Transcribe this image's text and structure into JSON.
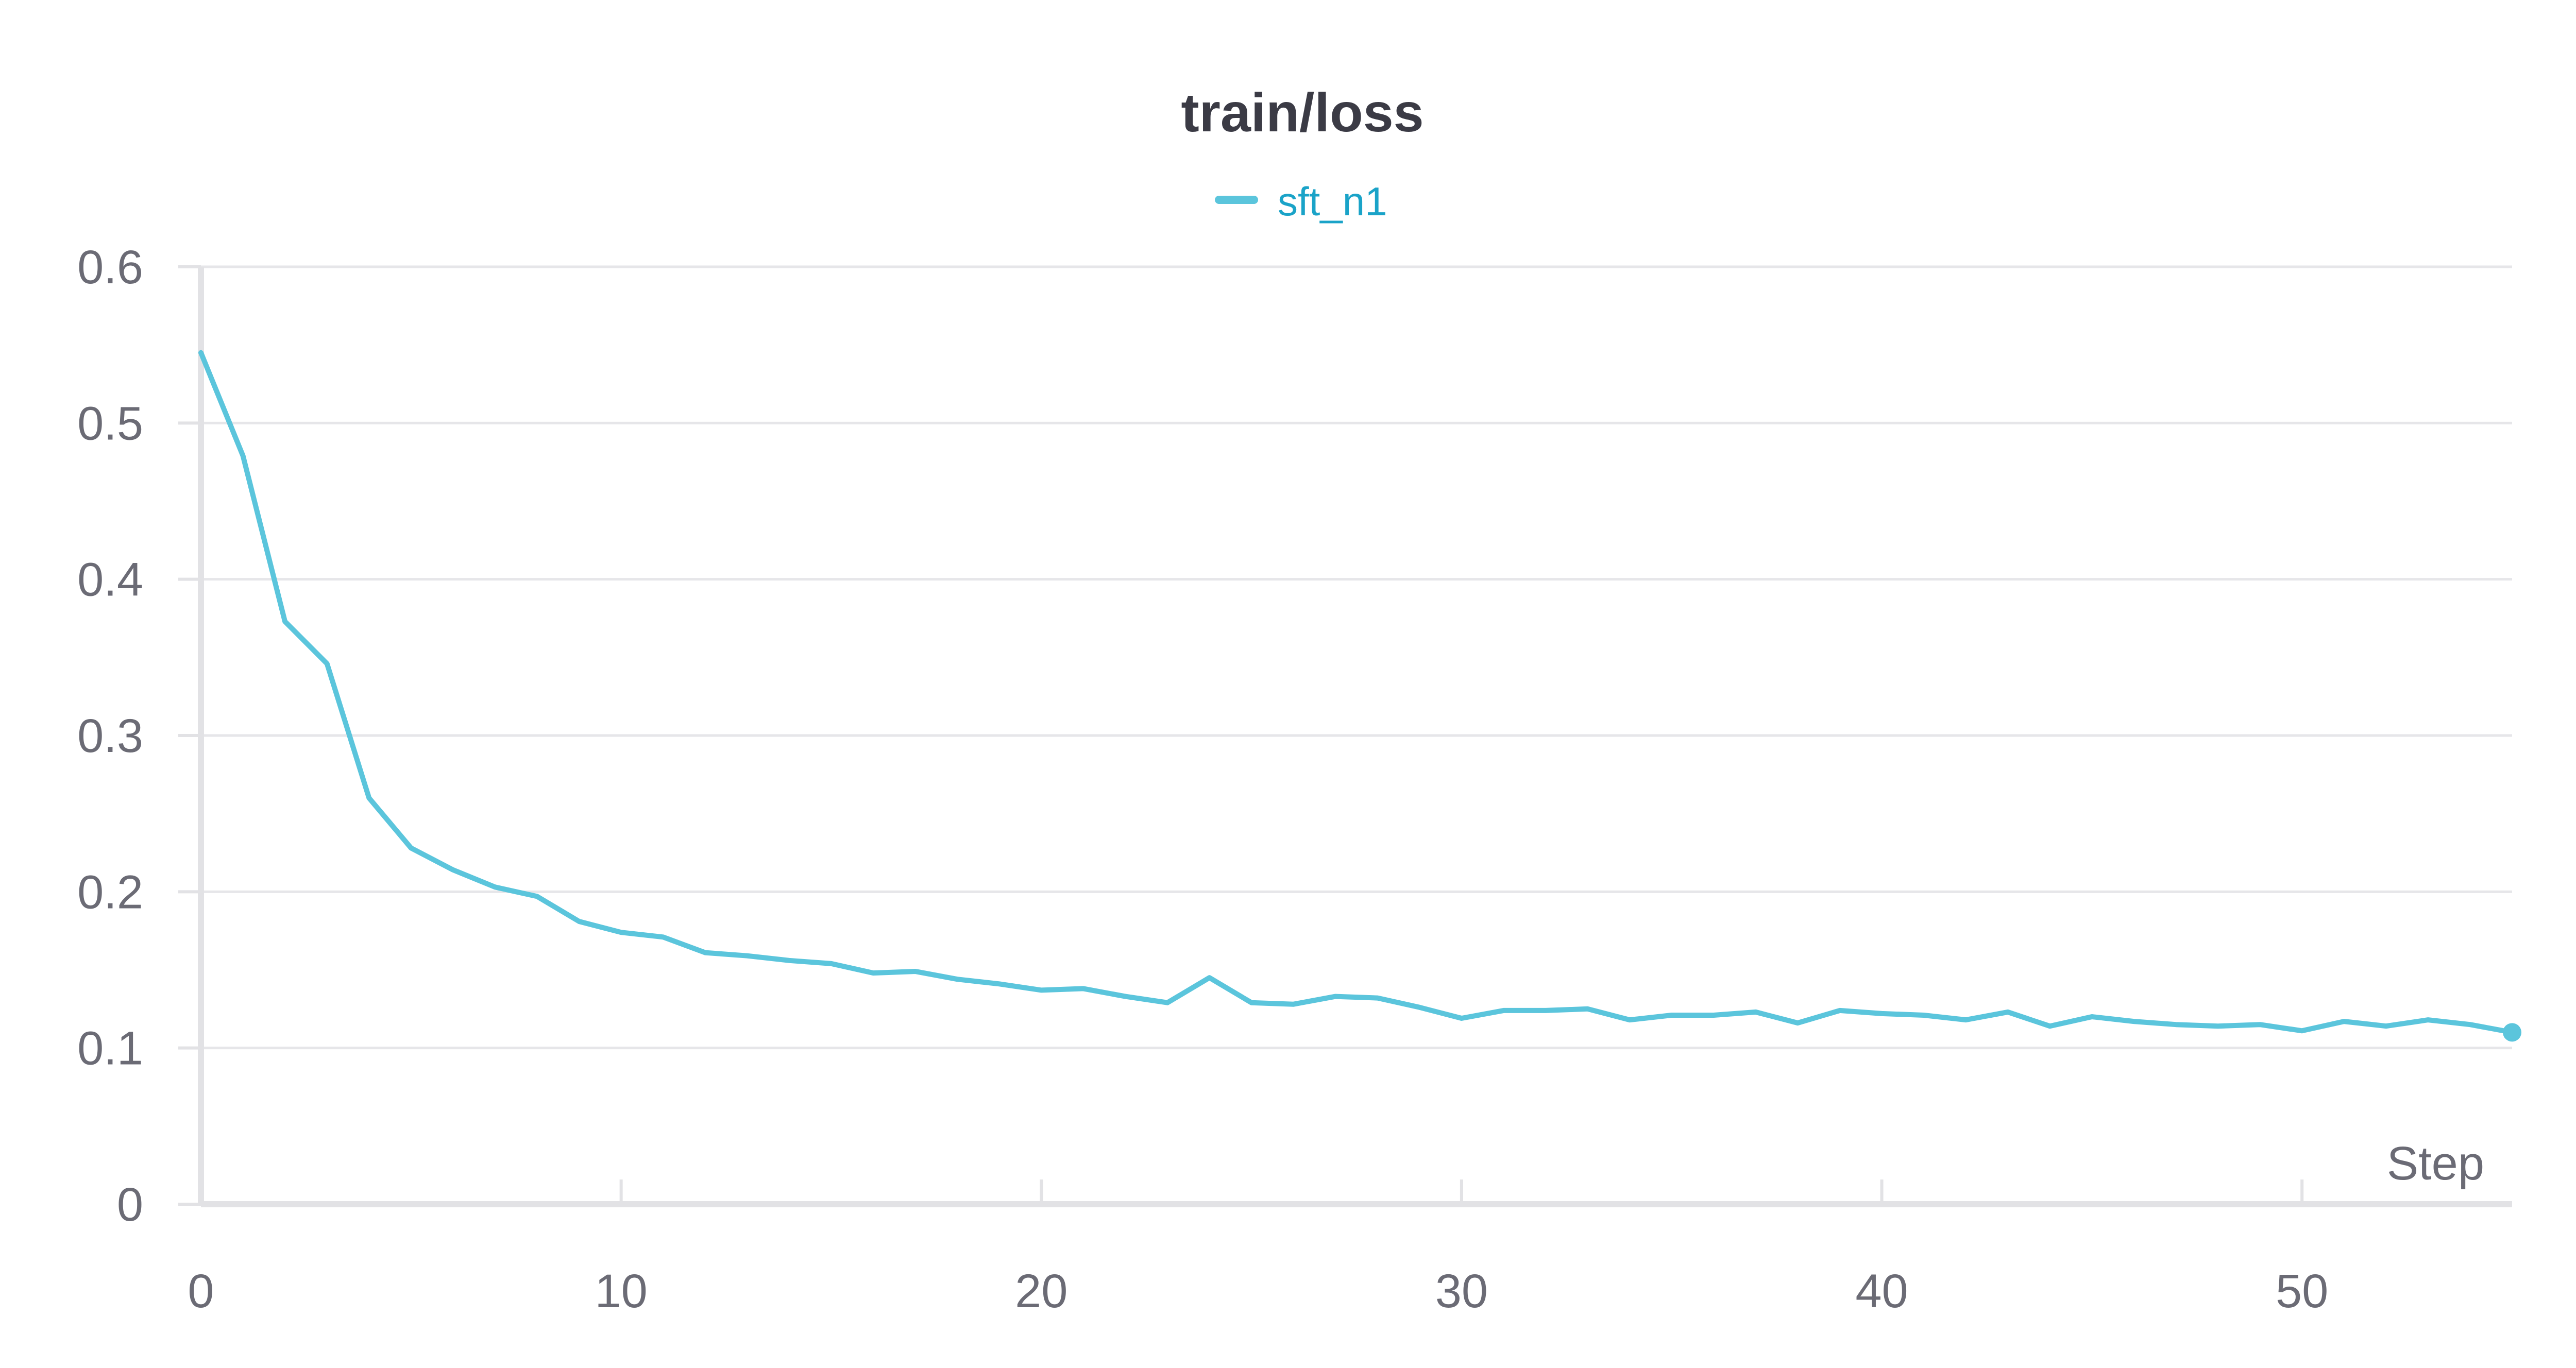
{
  "chart_data": {
    "type": "line",
    "title": "train/loss",
    "xlabel": "Step",
    "ylabel": "",
    "xlim": [
      0,
      55
    ],
    "ylim": [
      0,
      0.6
    ],
    "xticks": [
      0,
      10,
      20,
      30,
      40,
      50
    ],
    "yticks": [
      0,
      0.1,
      0.2,
      0.3,
      0.4,
      0.5,
      0.6
    ],
    "grid": true,
    "legend_position": "top-center",
    "series": [
      {
        "name": "sft_n1",
        "color": "#5bc5dc",
        "x": [
          0,
          1,
          2,
          3,
          4,
          5,
          6,
          7,
          8,
          9,
          10,
          11,
          12,
          13,
          14,
          15,
          16,
          17,
          18,
          19,
          20,
          21,
          22,
          23,
          24,
          25,
          26,
          27,
          28,
          29,
          30,
          31,
          32,
          33,
          34,
          35,
          36,
          37,
          38,
          39,
          40,
          41,
          42,
          43,
          44,
          45,
          46,
          47,
          48,
          49,
          50,
          51,
          52,
          53,
          54,
          55
        ],
        "y": [
          0.545,
          0.479,
          0.373,
          0.346,
          0.26,
          0.228,
          0.214,
          0.203,
          0.197,
          0.181,
          0.174,
          0.171,
          0.161,
          0.159,
          0.156,
          0.154,
          0.148,
          0.149,
          0.144,
          0.141,
          0.137,
          0.138,
          0.133,
          0.129,
          0.145,
          0.129,
          0.128,
          0.133,
          0.132,
          0.126,
          0.119,
          0.124,
          0.124,
          0.125,
          0.118,
          0.121,
          0.121,
          0.123,
          0.116,
          0.124,
          0.122,
          0.121,
          0.118,
          0.123,
          0.114,
          0.12,
          0.117,
          0.115,
          0.114,
          0.115,
          0.111,
          0.117,
          0.114,
          0.118,
          0.115,
          0.11
        ]
      }
    ]
  }
}
